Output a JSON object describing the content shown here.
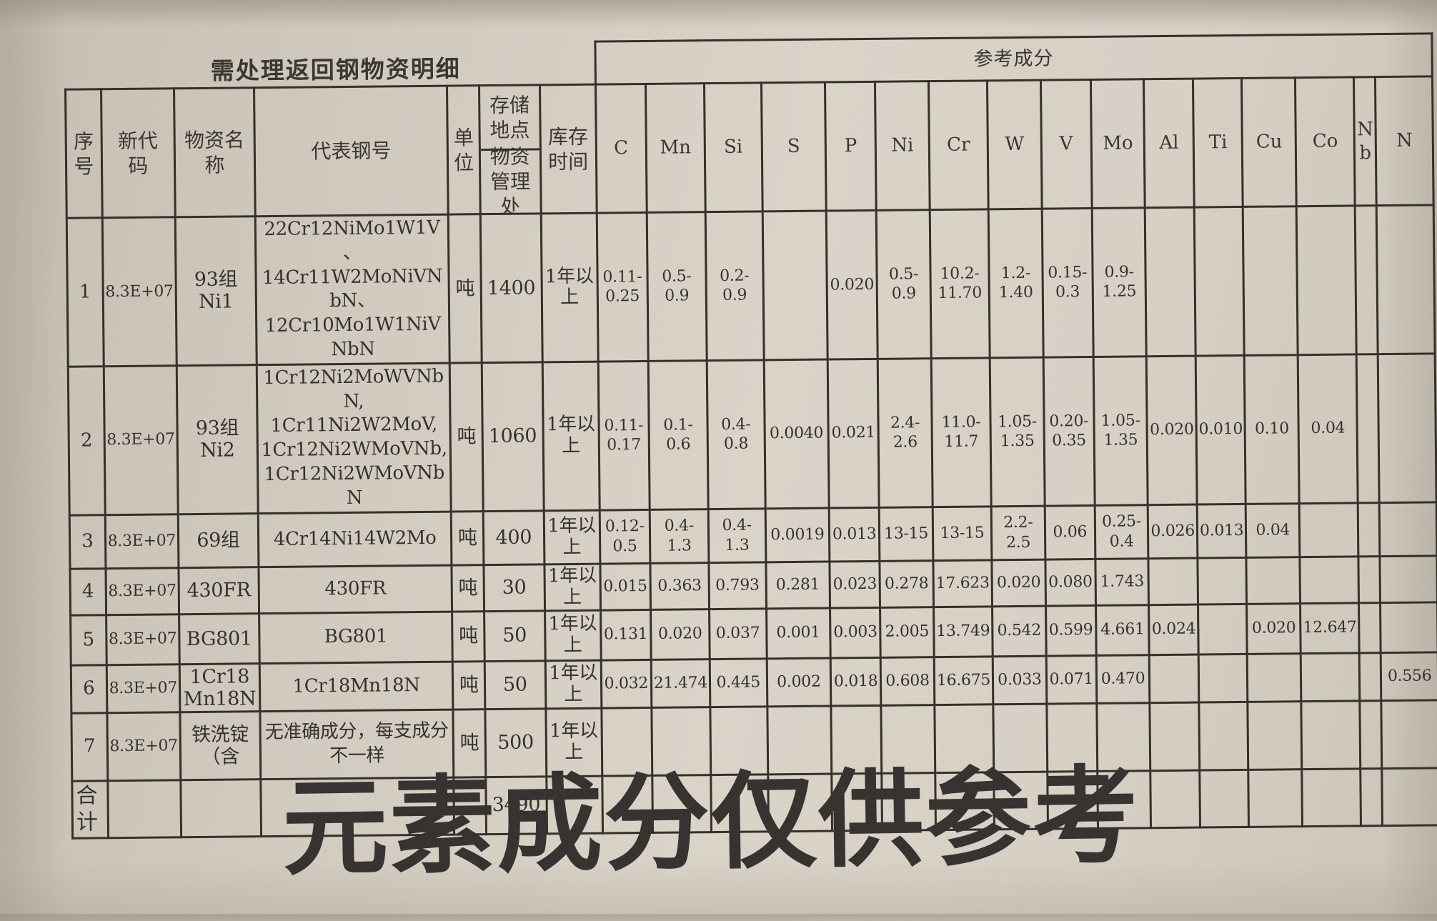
{
  "title": "需处理返回钢物资明细",
  "banner": "参考成分",
  "columns": {
    "seq": "序号",
    "code": "新代码",
    "name": "物资名称",
    "grade": "代表钢号",
    "unit": "单位",
    "storage_top": "存储地点",
    "storage_bottom": "物资管理处",
    "time": "库存时间",
    "elements": [
      "C",
      "Mn",
      "Si",
      "S",
      "P",
      "Ni",
      "Cr",
      "W",
      "V",
      "Mo",
      "Al",
      "Ti",
      "Cu",
      "Co",
      "Nb",
      "N"
    ]
  },
  "rows": [
    {
      "seq": "1",
      "code": "8.3E+07",
      "name": "93组Ni1",
      "grades": "22Cr12NiMo1W1V、\n14Cr11W2MoNiVNbN、\n12Cr10Mo1W1NiVNbN",
      "unit": "吨",
      "qty": "1400",
      "time": "1年以上",
      "elements": [
        "0.11-0.25",
        "0.5-0.9",
        "0.2-0.9",
        "",
        "0.020",
        "0.5-0.9",
        "10.2-11.70",
        "1.2-1.40",
        "0.15-0.3",
        "0.9-1.25",
        "",
        "",
        "",
        "",
        "",
        ""
      ]
    },
    {
      "seq": "2",
      "code": "8.3E+07",
      "name": "93组Ni2",
      "grades": "1Cr12Ni2MoWVNbN,\n1Cr11Ni2W2MoV,\n1Cr12Ni2WMoVNb,\n1Cr12Ni2WMoVNbN",
      "unit": "吨",
      "qty": "1060",
      "time": "1年以上",
      "elements": [
        "0.11-0.17",
        "0.1-0.6",
        "0.4-0.8",
        "0.0040",
        "0.021",
        "2.4-2.6",
        "11.0-11.7",
        "1.05-1.35",
        "0.20-0.35",
        "1.05-1.35",
        "0.020",
        "0.010",
        "0.10",
        "0.04",
        "",
        ""
      ]
    },
    {
      "seq": "3",
      "code": "8.3E+07",
      "name": "69组",
      "grades": "4Cr14Ni14W2Mo",
      "unit": "吨",
      "qty": "400",
      "time": "1年以上",
      "elements": [
        "0.12-0.5",
        "0.4-1.3",
        "0.4-1.3",
        "0.0019",
        "0.013",
        "13-15",
        "13-15",
        "2.2-2.5",
        "0.06",
        "0.25-0.4",
        "0.026",
        "0.013",
        "0.04",
        "",
        "",
        ""
      ]
    },
    {
      "seq": "4",
      "code": "8.3E+07",
      "name": "430FR",
      "grades": "430FR",
      "unit": "吨",
      "qty": "30",
      "time": "1年以上",
      "elements": [
        "0.015",
        "0.363",
        "0.793",
        "0.281",
        "0.023",
        "0.278",
        "17.623",
        "0.020",
        "0.080",
        "1.743",
        "",
        "",
        "",
        "",
        "",
        ""
      ]
    },
    {
      "seq": "5",
      "code": "8.3E+07",
      "name": "BG801",
      "grades": "BG801",
      "unit": "吨",
      "qty": "50",
      "time": "1年以上",
      "elements": [
        "0.131",
        "0.020",
        "0.037",
        "0.001",
        "0.003",
        "2.005",
        "13.749",
        "0.542",
        "0.599",
        "4.661",
        "0.024",
        "",
        "0.020",
        "12.647",
        "",
        ""
      ]
    },
    {
      "seq": "6",
      "code": "8.3E+07",
      "name": "1Cr18Mn18N",
      "grades": "1Cr18Mn18N",
      "unit": "吨",
      "qty": "50",
      "time": "1年以上",
      "elements": [
        "0.032",
        "21.474",
        "0.445",
        "0.002",
        "0.018",
        "0.608",
        "16.675",
        "0.033",
        "0.071",
        "0.470",
        "",
        "",
        "",
        "",
        "",
        "0.556"
      ]
    },
    {
      "seq": "7",
      "code": "8.3E+07",
      "name": "铁洗锭\n（含",
      "grades": "无准确成分，每支成分不一样",
      "unit": "吨",
      "qty": "500",
      "time": "1年以上",
      "elements": [
        "",
        "",
        "",
        "",
        "",
        "",
        "",
        "",
        "",
        "",
        "",
        "",
        "",
        "",
        "",
        ""
      ]
    }
  ],
  "total_row": {
    "label": "合计",
    "qty": "3490"
  },
  "footer_note": "元素成分仅供参考"
}
